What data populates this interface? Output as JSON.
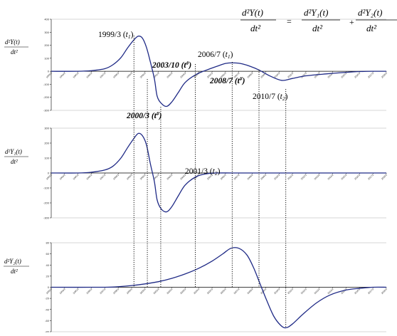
{
  "equation": {
    "lhs_num": "d²Y(t)",
    "lhs_den": "dt²",
    "equals": "=",
    "t1_num": "d²Y₁(t)",
    "t1_den": "dt²",
    "plus": "+",
    "t2_num": "d²Y₂(t)",
    "t2_den": "dt²"
  },
  "chart_data": [
    {
      "type": "line",
      "ylabel_num": "d²Y(t)",
      "ylabel_den": "dt²",
      "ylim": [
        -300,
        400
      ],
      "yticks": [
        "400",
        "300",
        "200",
        "100",
        "0",
        "-100",
        "-200",
        "-300"
      ],
      "xticks": [
        "1993/1",
        "1994/1",
        "1995/1",
        "1996/1",
        "1997/1",
        "1998/1",
        "1999/1",
        "2000/1",
        "2001/1",
        "2002/1",
        "2003/1",
        "2004/1",
        "2005/1",
        "2006/1",
        "2007/1",
        "2008/1",
        "2009/1",
        "2010/1",
        "2011/1",
        "2012/1",
        "2013/1",
        "2014/1",
        "2015/1",
        "2016/1",
        "2017/1",
        "2018/1"
      ],
      "series": [
        {
          "x": [
            1993.0,
            1995.0,
            1996.0,
            1997.0,
            1997.6,
            1998.2,
            1998.7,
            1999.2,
            1999.5,
            1999.8,
            2000.1,
            2000.4,
            2000.7,
            2000.9,
            2001.2,
            2001.6,
            2002.0,
            2002.5,
            2003.0,
            2003.8,
            2004.6,
            2005.4,
            2006.0,
            2006.5,
            2007.1,
            2007.8,
            2008.5,
            2009.3,
            2010.2,
            2011.0,
            2012.0,
            2013.5,
            2015.0,
            2016.0,
            2017.0,
            2018.0
          ],
          "y": [
            0,
            0,
            5,
            20,
            50,
            105,
            180,
            245,
            270,
            255,
            185,
            70,
            -60,
            -190,
            -245,
            -270,
            -235,
            -160,
            -85,
            -25,
            10,
            40,
            60,
            65,
            60,
            40,
            10,
            -35,
            -70,
            -55,
            -35,
            -20,
            -8,
            -2,
            0,
            0
          ]
        }
      ],
      "annotations": [
        {
          "text": "1999/3 (",
          "sub": "t",
          "subn": "1",
          "tail": ")",
          "style": "normal"
        },
        {
          "text": "2000/3 (",
          "sub": "t",
          "subn": "#",
          "tail": ")",
          "style": "bold"
        },
        {
          "text": "2003/10 (",
          "sub": "t",
          "subn": "#",
          "tail": ")",
          "style": "bold"
        },
        {
          "text": "2006/7 (",
          "sub": "t",
          "subn": "1",
          "tail": ")",
          "style": "normal"
        },
        {
          "text": "2008/7 (",
          "sub": "t",
          "subn": "#",
          "tail": ")",
          "style": "bold"
        },
        {
          "text": "2010/7 (",
          "sub": "t",
          "subn": "2",
          "tail": ")",
          "style": "normal"
        }
      ]
    },
    {
      "type": "line",
      "ylabel_num": "d²Y₁(t)",
      "ylabel_den": "dt²",
      "ylim": [
        -300,
        300
      ],
      "yticks": [
        "300",
        "200",
        "100",
        "0",
        "-100",
        "-200",
        "-300"
      ],
      "xticks": [
        "1993/1",
        "1994/1",
        "1995/1",
        "1996/1",
        "1997/1",
        "1998/1",
        "1999/1",
        "2000/1",
        "2001/1",
        "2002/1",
        "2003/1",
        "2004/1",
        "2005/1",
        "2006/1",
        "2007/1",
        "2008/1",
        "2009/1",
        "2010/1",
        "2011/1",
        "2012/1",
        "2013/1",
        "2014/1",
        "2015/1",
        "2016/1",
        "2017/1",
        "2018/1"
      ],
      "series": [
        {
          "x": [
            1993.0,
            1995.0,
            1996.0,
            1997.0,
            1997.6,
            1998.2,
            1998.7,
            1999.2,
            1999.5,
            1999.8,
            2000.1,
            2000.4,
            2000.7,
            2000.9,
            2001.2,
            2001.6,
            2002.0,
            2002.5,
            2003.0,
            2003.8,
            2004.6,
            2005.4,
            2006.5,
            2008.0,
            2010.0,
            2013.0,
            2018.0
          ],
          "y": [
            0,
            0,
            5,
            20,
            45,
            100,
            170,
            235,
            265,
            250,
            190,
            60,
            -60,
            -180,
            -240,
            -260,
            -225,
            -150,
            -80,
            -25,
            -5,
            0,
            0,
            0,
            0,
            0,
            0
          ]
        }
      ],
      "annotations": [
        {
          "text": "2001/3 (",
          "sub": "t",
          "subn": "2",
          "tail": ")",
          "style": "normal"
        }
      ]
    },
    {
      "type": "line",
      "ylabel_num": "d²Y₂(t)",
      "ylabel_den": "dt²",
      "ylim": [
        -80,
        80
      ],
      "yticks": [
        "80",
        "60",
        "40",
        "20",
        "0",
        "-20",
        "-40",
        "-60",
        "-80"
      ],
      "xticks": [
        "1993/1",
        "1994/1",
        "1995/1",
        "1996/1",
        "1997/1",
        "1998/1",
        "1999/1",
        "2000/1",
        "2001/1",
        "2002/1",
        "2003/1",
        "2004/1",
        "2005/1",
        "2006/1",
        "2007/1",
        "2008/1",
        "2009/1",
        "2010/1",
        "2011/1",
        "2012/1",
        "2013/1",
        "2014/1",
        "2015/1",
        "2016/1",
        "2017/1",
        "2018/1"
      ],
      "series": [
        {
          "x": [
            1993.0,
            1997.0,
            1998.0,
            1999.0,
            2000.0,
            2001.0,
            2002.0,
            2003.0,
            2004.0,
            2005.0,
            2005.8,
            2006.4,
            2007.0,
            2007.6,
            2008.1,
            2008.6,
            2009.1,
            2009.6,
            2010.1,
            2010.5,
            2011.0,
            2011.8,
            2012.8,
            2013.8,
            2015.0,
            2016.0,
            2017.0,
            2018.0
          ],
          "y": [
            0,
            0,
            1,
            3,
            6,
            10,
            16,
            24,
            34,
            47,
            60,
            70,
            70,
            58,
            35,
            5,
            -25,
            -52,
            -68,
            -73,
            -66,
            -48,
            -28,
            -14,
            -5,
            -2,
            0,
            0
          ]
        }
      ],
      "annotations": []
    }
  ]
}
